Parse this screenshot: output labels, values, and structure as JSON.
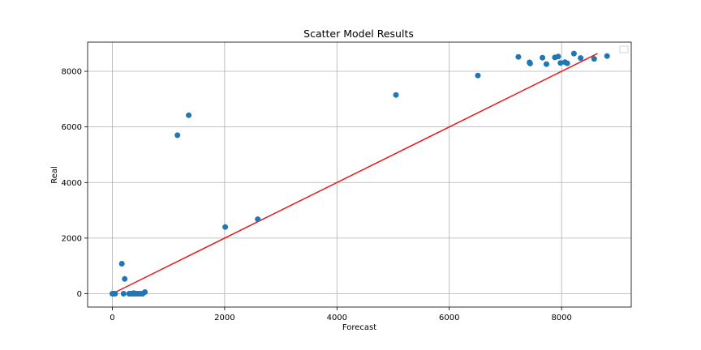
{
  "chart_data": {
    "type": "scatter",
    "title": "Scatter Model Results",
    "xlabel": "Forecast",
    "ylabel": "Real",
    "xlim": [
      -440,
      9240
    ],
    "ylim": [
      -480,
      9050
    ],
    "xticks": [
      0,
      2000,
      4000,
      6000,
      8000
    ],
    "yticks": [
      0,
      2000,
      4000,
      6000,
      8000
    ],
    "grid": true,
    "legend": "top-right",
    "series": [
      {
        "type": "scatter",
        "color": "#1f77b4",
        "points": [
          [
            0,
            0
          ],
          [
            30,
            0
          ],
          [
            50,
            0
          ],
          [
            200,
            0
          ],
          [
            170,
            1080
          ],
          [
            220,
            530
          ],
          [
            300,
            0
          ],
          [
            330,
            0
          ],
          [
            360,
            0
          ],
          [
            380,
            20
          ],
          [
            400,
            0
          ],
          [
            420,
            0
          ],
          [
            450,
            0
          ],
          [
            480,
            0
          ],
          [
            510,
            0
          ],
          [
            540,
            0
          ],
          [
            580,
            60
          ],
          [
            1160,
            5700
          ],
          [
            1360,
            6420
          ],
          [
            2010,
            2400
          ],
          [
            2590,
            2680
          ],
          [
            5050,
            7150
          ],
          [
            6510,
            7850
          ],
          [
            7230,
            8520
          ],
          [
            7430,
            8320
          ],
          [
            7440,
            8280
          ],
          [
            7660,
            8490
          ],
          [
            7730,
            8260
          ],
          [
            7880,
            8500
          ],
          [
            7940,
            8530
          ],
          [
            7980,
            8300
          ],
          [
            8060,
            8330
          ],
          [
            8100,
            8290
          ],
          [
            8220,
            8640
          ],
          [
            8340,
            8480
          ],
          [
            8580,
            8450
          ],
          [
            8810,
            8550
          ]
        ]
      },
      {
        "type": "line",
        "color": "#e41a1c",
        "points": [
          [
            0,
            0
          ],
          [
            8640,
            8640
          ]
        ]
      }
    ]
  }
}
